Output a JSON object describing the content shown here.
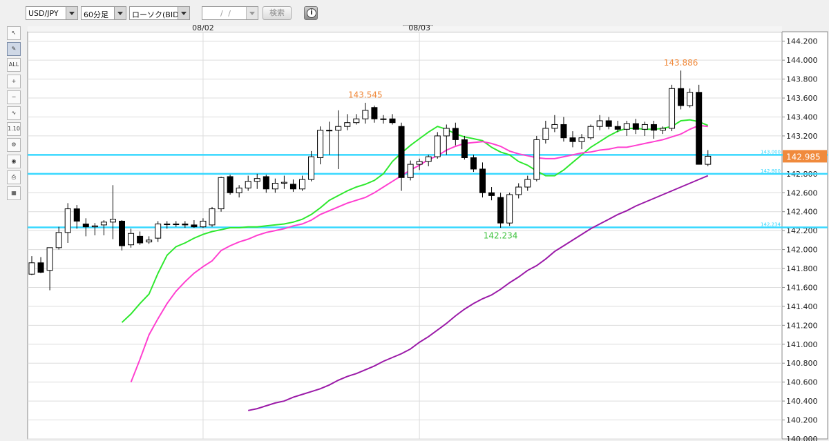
{
  "toolbar": {
    "pair": "USD/JPY",
    "timeframe": "60分足",
    "chart_type": "ローソク(BID)",
    "date_placeholder": "/ /",
    "search_label": "検索",
    "info_icon": "info-icon"
  },
  "sidebar": {
    "tools": [
      {
        "name": "cursor-icon",
        "label": "↖"
      },
      {
        "name": "pencil-icon",
        "label": "✎"
      },
      {
        "name": "erase-all-icon",
        "label": "ALL"
      },
      {
        "name": "zoom-in-icon",
        "label": "+"
      },
      {
        "name": "zoom-out-icon",
        "label": "−"
      },
      {
        "name": "indicator-icon",
        "label": "∿"
      },
      {
        "name": "numbers-icon",
        "label": "1.10"
      },
      {
        "name": "settings-icon",
        "label": "⚙"
      },
      {
        "name": "eye-icon",
        "label": "◉"
      },
      {
        "name": "print-icon",
        "label": "⎙"
      },
      {
        "name": "table-icon",
        "label": "▦"
      }
    ]
  },
  "chart_data": {
    "type": "candlestick",
    "title": "",
    "date_labels": [
      {
        "text": "08/02",
        "index": 19
      },
      {
        "text": "08/03",
        "index": 43
      }
    ],
    "ylim": [
      140.0,
      144.3
    ],
    "yticks": [
      140.0,
      140.2,
      140.4,
      140.6,
      140.8,
      141.0,
      141.2,
      141.4,
      141.6,
      141.8,
      142.0,
      142.2,
      142.4,
      142.6,
      142.8,
      143.0,
      143.2,
      143.4,
      143.6,
      143.8,
      144.0,
      144.2
    ],
    "grid": true,
    "current_price": 142.985,
    "current_price_color": "#f08a3c",
    "candle_colors": {
      "up": "#ffffff",
      "down": "#000000",
      "wick": "#000000"
    },
    "candles": [
      {
        "o": 141.74,
        "h": 141.93,
        "l": 141.73,
        "c": 141.86
      },
      {
        "o": 141.86,
        "h": 141.92,
        "l": 141.75,
        "c": 141.76
      },
      {
        "o": 141.78,
        "h": 142.02,
        "l": 141.57,
        "c": 142.02
      },
      {
        "o": 142.02,
        "h": 142.24,
        "l": 142.0,
        "c": 142.18
      },
      {
        "o": 142.18,
        "h": 142.49,
        "l": 142.07,
        "c": 142.43
      },
      {
        "o": 142.43,
        "h": 142.47,
        "l": 142.22,
        "c": 142.3
      },
      {
        "o": 142.27,
        "h": 142.33,
        "l": 142.14,
        "c": 142.24
      },
      {
        "o": 142.24,
        "h": 142.28,
        "l": 142.15,
        "c": 142.25
      },
      {
        "o": 142.26,
        "h": 142.31,
        "l": 142.15,
        "c": 142.29
      },
      {
        "o": 142.29,
        "h": 142.68,
        "l": 142.11,
        "c": 142.32
      },
      {
        "o": 142.3,
        "h": 142.31,
        "l": 141.99,
        "c": 142.04
      },
      {
        "o": 142.05,
        "h": 142.22,
        "l": 142.02,
        "c": 142.17
      },
      {
        "o": 142.14,
        "h": 142.19,
        "l": 142.05,
        "c": 142.07
      },
      {
        "o": 142.08,
        "h": 142.14,
        "l": 142.06,
        "c": 142.1
      },
      {
        "o": 142.12,
        "h": 142.3,
        "l": 142.08,
        "c": 142.27
      },
      {
        "o": 142.27,
        "h": 142.3,
        "l": 142.22,
        "c": 142.27
      },
      {
        "o": 142.27,
        "h": 142.3,
        "l": 142.24,
        "c": 142.27
      },
      {
        "o": 142.27,
        "h": 142.3,
        "l": 142.23,
        "c": 142.26
      },
      {
        "o": 142.26,
        "h": 142.31,
        "l": 142.23,
        "c": 142.24
      },
      {
        "o": 142.24,
        "h": 142.33,
        "l": 142.23,
        "c": 142.3
      },
      {
        "o": 142.26,
        "h": 142.45,
        "l": 142.24,
        "c": 142.43
      },
      {
        "o": 142.43,
        "h": 142.77,
        "l": 142.4,
        "c": 142.76
      },
      {
        "o": 142.77,
        "h": 142.79,
        "l": 142.58,
        "c": 142.6
      },
      {
        "o": 142.6,
        "h": 142.68,
        "l": 142.55,
        "c": 142.65
      },
      {
        "o": 142.65,
        "h": 142.78,
        "l": 142.62,
        "c": 142.72
      },
      {
        "o": 142.72,
        "h": 142.8,
        "l": 142.64,
        "c": 142.75
      },
      {
        "o": 142.77,
        "h": 142.79,
        "l": 142.6,
        "c": 142.64
      },
      {
        "o": 142.64,
        "h": 142.75,
        "l": 142.6,
        "c": 142.7
      },
      {
        "o": 142.7,
        "h": 142.78,
        "l": 142.64,
        "c": 142.71
      },
      {
        "o": 142.69,
        "h": 142.74,
        "l": 142.61,
        "c": 142.64
      },
      {
        "o": 142.64,
        "h": 142.78,
        "l": 142.62,
        "c": 142.74
      },
      {
        "o": 142.74,
        "h": 143.04,
        "l": 142.72,
        "c": 142.98
      },
      {
        "o": 142.97,
        "h": 143.3,
        "l": 142.9,
        "c": 143.26
      },
      {
        "o": 143.26,
        "h": 143.35,
        "l": 143.0,
        "c": 143.26
      },
      {
        "o": 143.26,
        "h": 143.47,
        "l": 142.85,
        "c": 143.3
      },
      {
        "o": 143.3,
        "h": 143.43,
        "l": 143.26,
        "c": 143.34
      },
      {
        "o": 143.34,
        "h": 143.43,
        "l": 143.32,
        "c": 143.38
      },
      {
        "o": 143.38,
        "h": 143.55,
        "l": 143.33,
        "c": 143.47
      },
      {
        "o": 143.5,
        "h": 143.52,
        "l": 143.34,
        "c": 143.38
      },
      {
        "o": 143.38,
        "h": 143.42,
        "l": 143.33,
        "c": 143.38
      },
      {
        "o": 143.38,
        "h": 143.43,
        "l": 143.32,
        "c": 143.34
      },
      {
        "o": 143.3,
        "h": 143.34,
        "l": 142.62,
        "c": 142.76
      },
      {
        "o": 142.76,
        "h": 142.94,
        "l": 142.73,
        "c": 142.9
      },
      {
        "o": 142.9,
        "h": 142.96,
        "l": 142.84,
        "c": 142.93
      },
      {
        "o": 142.93,
        "h": 143.0,
        "l": 142.88,
        "c": 142.98
      },
      {
        "o": 142.98,
        "h": 143.24,
        "l": 142.96,
        "c": 143.2
      },
      {
        "o": 143.2,
        "h": 143.32,
        "l": 143.0,
        "c": 143.28
      },
      {
        "o": 143.28,
        "h": 143.34,
        "l": 143.1,
        "c": 143.16
      },
      {
        "o": 143.16,
        "h": 143.2,
        "l": 142.95,
        "c": 142.97
      },
      {
        "o": 142.97,
        "h": 143.0,
        "l": 142.82,
        "c": 142.85
      },
      {
        "o": 142.85,
        "h": 142.92,
        "l": 142.55,
        "c": 142.6
      },
      {
        "o": 142.6,
        "h": 142.66,
        "l": 142.52,
        "c": 142.57
      },
      {
        "o": 142.55,
        "h": 142.6,
        "l": 142.23,
        "c": 142.28
      },
      {
        "o": 142.28,
        "h": 142.6,
        "l": 142.25,
        "c": 142.58
      },
      {
        "o": 142.58,
        "h": 142.7,
        "l": 142.54,
        "c": 142.66
      },
      {
        "o": 142.66,
        "h": 142.78,
        "l": 142.62,
        "c": 142.74
      },
      {
        "o": 142.74,
        "h": 143.2,
        "l": 142.72,
        "c": 143.16
      },
      {
        "o": 143.16,
        "h": 143.36,
        "l": 143.12,
        "c": 143.28
      },
      {
        "o": 143.28,
        "h": 143.42,
        "l": 143.24,
        "c": 143.32
      },
      {
        "o": 143.32,
        "h": 143.4,
        "l": 143.14,
        "c": 143.18
      },
      {
        "o": 143.18,
        "h": 143.25,
        "l": 143.08,
        "c": 143.14
      },
      {
        "o": 143.14,
        "h": 143.22,
        "l": 143.06,
        "c": 143.18
      },
      {
        "o": 143.18,
        "h": 143.32,
        "l": 143.16,
        "c": 143.3
      },
      {
        "o": 143.3,
        "h": 143.42,
        "l": 143.26,
        "c": 143.36
      },
      {
        "o": 143.36,
        "h": 143.4,
        "l": 143.27,
        "c": 143.3
      },
      {
        "o": 143.3,
        "h": 143.36,
        "l": 143.24,
        "c": 143.27
      },
      {
        "o": 143.27,
        "h": 143.36,
        "l": 143.2,
        "c": 143.33
      },
      {
        "o": 143.33,
        "h": 143.38,
        "l": 143.22,
        "c": 143.27
      },
      {
        "o": 143.27,
        "h": 143.35,
        "l": 143.2,
        "c": 143.32
      },
      {
        "o": 143.32,
        "h": 143.36,
        "l": 143.17,
        "c": 143.26
      },
      {
        "o": 143.26,
        "h": 143.3,
        "l": 143.22,
        "c": 143.28
      },
      {
        "o": 143.28,
        "h": 143.74,
        "l": 143.25,
        "c": 143.7
      },
      {
        "o": 143.7,
        "h": 143.89,
        "l": 143.48,
        "c": 143.52
      },
      {
        "o": 143.52,
        "h": 143.7,
        "l": 143.5,
        "c": 143.66
      },
      {
        "o": 143.66,
        "h": 143.74,
        "l": 142.9,
        "c": 142.9
      },
      {
        "o": 142.9,
        "h": 143.05,
        "l": 142.88,
        "c": 142.985
      }
    ],
    "moving_averages": [
      {
        "color": "#2ee82e",
        "values": [
          141.23,
          141.32,
          141.43,
          141.53,
          141.75,
          141.94,
          142.03,
          142.07,
          142.12,
          142.16,
          142.19,
          142.21,
          142.23,
          142.23,
          142.24,
          142.24,
          142.25,
          142.26,
          142.27,
          142.29,
          142.32,
          142.37,
          142.44,
          142.52,
          142.57,
          142.62,
          142.66,
          142.69,
          142.73,
          142.8,
          142.93,
          143.02,
          143.1,
          143.17,
          143.24,
          143.3,
          143.27,
          143.22,
          143.19,
          143.17,
          143.15,
          143.08,
          143.03,
          143.0,
          142.93,
          142.89,
          142.83,
          142.78,
          142.78,
          142.84,
          142.92,
          143.0,
          143.08,
          143.14,
          143.2,
          143.25,
          143.28,
          143.28,
          143.27,
          143.27,
          143.28,
          143.3,
          143.36,
          143.37,
          143.35,
          143.31
        ]
      },
      {
        "color": "#ff3fd0",
        "values": [
          140.6,
          140.84,
          141.1,
          141.27,
          141.43,
          141.56,
          141.66,
          141.75,
          141.82,
          141.88,
          141.99,
          142.04,
          142.08,
          142.11,
          142.15,
          142.18,
          142.2,
          142.22,
          142.25,
          142.27,
          142.31,
          142.37,
          142.41,
          142.45,
          142.49,
          142.52,
          142.55,
          142.6,
          142.66,
          142.72,
          142.78,
          142.84,
          142.89,
          142.95,
          142.99,
          143.05,
          143.09,
          143.12,
          143.13,
          143.14,
          143.12,
          143.09,
          143.04,
          143.01,
          142.99,
          142.97,
          142.96,
          142.96,
          142.98,
          143.0,
          143.02,
          143.03,
          143.05,
          143.06,
          143.08,
          143.08,
          143.1,
          143.12,
          143.14,
          143.16,
          143.19,
          143.22,
          143.27,
          143.31,
          143.3
        ]
      },
      {
        "color": "#9b1aa8",
        "values": [
          140.3,
          140.32,
          140.35,
          140.38,
          140.4,
          140.44,
          140.47,
          140.5,
          140.53,
          140.57,
          140.62,
          140.66,
          140.69,
          140.73,
          140.77,
          140.82,
          140.86,
          140.9,
          140.95,
          141.02,
          141.08,
          141.15,
          141.22,
          141.3,
          141.37,
          141.43,
          141.48,
          141.52,
          141.58,
          141.65,
          141.71,
          141.78,
          141.83,
          141.9,
          141.98,
          142.04,
          142.1,
          142.16,
          142.22,
          142.27,
          142.32,
          142.37,
          142.41,
          142.46,
          142.5,
          142.54,
          142.58,
          142.62,
          142.66,
          142.7,
          142.74,
          142.78
        ]
      }
    ],
    "hlines": [
      {
        "value": 143.0,
        "label": "143.000",
        "color": "#36d8ff"
      },
      {
        "value": 142.8,
        "label": "142.800",
        "color": "#36d8ff"
      },
      {
        "value": 142.234,
        "label": "142.234",
        "color": "#36d8ff"
      }
    ],
    "annotations": [
      {
        "text": "143.886",
        "value": 143.886,
        "index": 72,
        "color": "#f08a3c"
      },
      {
        "text": "143.545",
        "value": 143.545,
        "index": 37,
        "color": "#f08a3c"
      },
      {
        "text": "142.234",
        "value": 142.234,
        "index": 52,
        "color": "#3ec23e"
      }
    ]
  }
}
